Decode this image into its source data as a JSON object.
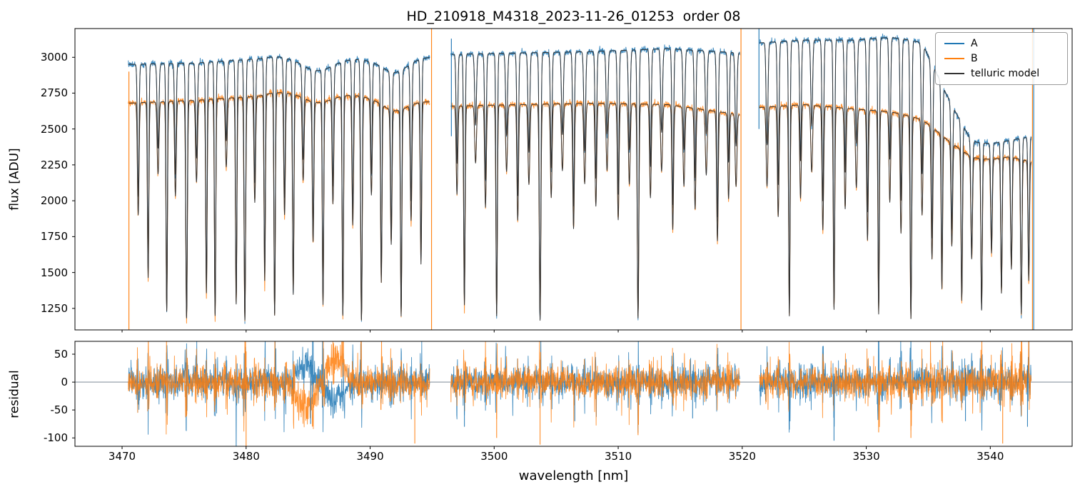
{
  "chart_data": {
    "type": "line",
    "title": "HD_210918_M4318_2023-11-26_01253  order 08",
    "xlabel": "wavelength [nm]",
    "xlim": [
      3466.2,
      3546.6
    ],
    "xticks": [
      3470,
      3480,
      3490,
      3500,
      3510,
      3520,
      3530,
      3540
    ],
    "panels": [
      {
        "name": "flux",
        "ylabel": "flux [ADU]",
        "ylim": [
          1100,
          3200
        ],
        "yticks": [
          1250,
          1500,
          1750,
          2000,
          2250,
          2500,
          2750,
          3000
        ],
        "grid": false
      },
      {
        "name": "residual",
        "ylabel": "residual",
        "ylim": [
          -115,
          73
        ],
        "yticks": [
          -100,
          -50,
          0,
          50
        ],
        "grid": false,
        "zero_line": 0
      }
    ],
    "legend": {
      "position": "upper right",
      "series": [
        {
          "label": "A",
          "color": "#1f77b4"
        },
        {
          "label": "B",
          "color": "#ff7f0e"
        },
        {
          "label": "telluric model",
          "color": "#333333"
        }
      ]
    },
    "segments": [
      [
        3470.5,
        3494.8
      ],
      [
        3496.5,
        3519.8
      ],
      [
        3521.4,
        3543.3
      ]
    ],
    "flux_floor": 1120,
    "continuum_A": [
      [
        3470.5,
        2950
      ],
      [
        3476,
        2960
      ],
      [
        3481,
        2990
      ],
      [
        3484.5,
        3060
      ],
      [
        3487,
        3020
      ],
      [
        3490,
        2980
      ],
      [
        3494.8,
        3000
      ],
      [
        3496.5,
        3020
      ],
      [
        3502,
        3030
      ],
      [
        3508,
        3040
      ],
      [
        3514,
        3060
      ],
      [
        3519.8,
        3030
      ],
      [
        3521.4,
        3100
      ],
      [
        3525,
        3120
      ],
      [
        3529,
        3120
      ],
      [
        3532,
        3140
      ],
      [
        3534.5,
        3120
      ],
      [
        3536.5,
        2800
      ],
      [
        3538.5,
        2520
      ],
      [
        3541.5,
        2500
      ],
      [
        3543.3,
        2480
      ]
    ],
    "continuum_B": [
      [
        3470.5,
        2680
      ],
      [
        3476,
        2700
      ],
      [
        3481,
        2730
      ],
      [
        3484.5,
        2820
      ],
      [
        3487,
        2780
      ],
      [
        3490,
        2720
      ],
      [
        3494.8,
        2690
      ],
      [
        3496.5,
        2660
      ],
      [
        3502,
        2670
      ],
      [
        3508,
        2680
      ],
      [
        3514,
        2670
      ],
      [
        3519.8,
        2600
      ],
      [
        3521.4,
        2650
      ],
      [
        3525,
        2670
      ],
      [
        3529,
        2640
      ],
      [
        3532,
        2620
      ],
      [
        3534.5,
        2580
      ],
      [
        3536.5,
        2480
      ],
      [
        3538.5,
        2400
      ],
      [
        3541.5,
        2380
      ],
      [
        3543.3,
        2300
      ]
    ],
    "telluric_lines": [
      [
        3471.3,
        0.5,
        0.09
      ],
      [
        3472.1,
        0.78,
        0.08
      ],
      [
        3472.9,
        0.32,
        0.1
      ],
      [
        3473.6,
        0.93,
        0.08
      ],
      [
        3474.3,
        0.42,
        0.09
      ],
      [
        3475.2,
        0.96,
        0.09
      ],
      [
        3476.0,
        0.36,
        0.1
      ],
      [
        3476.8,
        0.85,
        0.08
      ],
      [
        3477.5,
        0.95,
        0.08
      ],
      [
        3478.4,
        0.3,
        0.1
      ],
      [
        3479.2,
        0.9,
        0.08
      ],
      [
        3479.9,
        0.97,
        0.09
      ],
      [
        3480.7,
        0.46,
        0.09
      ],
      [
        3481.5,
        0.8,
        0.08
      ],
      [
        3482.3,
        0.95,
        0.08
      ],
      [
        3483.1,
        0.52,
        0.09
      ],
      [
        3483.8,
        0.86,
        0.08
      ],
      [
        3484.6,
        0.36,
        0.1
      ],
      [
        3485.4,
        0.62,
        0.09
      ],
      [
        3486.2,
        0.9,
        0.08
      ],
      [
        3487.0,
        0.46,
        0.09
      ],
      [
        3487.8,
        0.95,
        0.08
      ],
      [
        3488.6,
        0.56,
        0.09
      ],
      [
        3489.3,
        0.97,
        0.09
      ],
      [
        3490.1,
        0.42,
        0.09
      ],
      [
        3490.9,
        0.8,
        0.08
      ],
      [
        3491.7,
        0.62,
        0.09
      ],
      [
        3492.5,
        0.95,
        0.08
      ],
      [
        3493.3,
        0.52,
        0.09
      ],
      [
        3494.1,
        0.72,
        0.08
      ],
      [
        3497.0,
        0.4,
        0.09
      ],
      [
        3497.6,
        0.9,
        0.08
      ],
      [
        3498.5,
        0.26,
        0.1
      ],
      [
        3499.3,
        0.46,
        0.09
      ],
      [
        3500.2,
        0.95,
        0.08
      ],
      [
        3501.0,
        0.3,
        0.1
      ],
      [
        3501.9,
        0.52,
        0.09
      ],
      [
        3502.8,
        0.36,
        0.1
      ],
      [
        3503.7,
        0.97,
        0.09
      ],
      [
        3504.6,
        0.42,
        0.09
      ],
      [
        3505.5,
        0.3,
        0.1
      ],
      [
        3506.4,
        0.56,
        0.09
      ],
      [
        3507.3,
        0.36,
        0.1
      ],
      [
        3508.2,
        0.46,
        0.09
      ],
      [
        3509.1,
        0.3,
        0.1
      ],
      [
        3510.0,
        0.52,
        0.09
      ],
      [
        3510.9,
        0.36,
        0.1
      ],
      [
        3511.6,
        0.96,
        0.09
      ],
      [
        3512.6,
        0.42,
        0.09
      ],
      [
        3513.5,
        0.3,
        0.1
      ],
      [
        3514.4,
        0.56,
        0.09
      ],
      [
        3515.3,
        0.36,
        0.1
      ],
      [
        3516.2,
        0.46,
        0.09
      ],
      [
        3517.1,
        0.3,
        0.1
      ],
      [
        3518.0,
        0.6,
        0.09
      ],
      [
        3518.9,
        0.4,
        0.09
      ],
      [
        3519.5,
        0.34,
        0.1
      ],
      [
        3522.0,
        0.36,
        0.1
      ],
      [
        3522.9,
        0.5,
        0.09
      ],
      [
        3523.8,
        0.95,
        0.08
      ],
      [
        3524.7,
        0.42,
        0.09
      ],
      [
        3525.6,
        0.3,
        0.1
      ],
      [
        3526.5,
        0.56,
        0.09
      ],
      [
        3527.4,
        0.92,
        0.08
      ],
      [
        3528.3,
        0.46,
        0.09
      ],
      [
        3529.2,
        0.36,
        0.1
      ],
      [
        3530.1,
        0.6,
        0.09
      ],
      [
        3531.0,
        0.94,
        0.08
      ],
      [
        3531.9,
        0.42,
        0.09
      ],
      [
        3532.8,
        0.56,
        0.09
      ],
      [
        3533.6,
        0.96,
        0.09
      ],
      [
        3534.5,
        0.46,
        0.09
      ],
      [
        3535.3,
        0.66,
        0.09
      ],
      [
        3536.1,
        0.8,
        0.08
      ],
      [
        3536.9,
        0.56,
        0.09
      ],
      [
        3537.7,
        0.85,
        0.08
      ],
      [
        3538.5,
        0.6,
        0.09
      ],
      [
        3539.3,
        0.9,
        0.08
      ],
      [
        3540.1,
        0.56,
        0.09
      ],
      [
        3540.9,
        0.8,
        0.08
      ],
      [
        3541.7,
        0.66,
        0.09
      ],
      [
        3542.5,
        0.92,
        0.08
      ],
      [
        3543.1,
        0.72,
        0.08
      ]
    ],
    "broad_features": [
      [
        3485.5,
        0.07,
        1.5
      ],
      [
        3492.0,
        0.05,
        1.0
      ],
      [
        3539.5,
        0.08,
        2.5
      ]
    ],
    "edge_lines": {
      "orange": [
        [
          3470.55,
          2900,
          1100
        ],
        [
          3494.95,
          3200,
          1100
        ],
        [
          3519.9,
          3200,
          1100
        ],
        [
          3543.4,
          3200,
          1100
        ]
      ],
      "blue": [
        [
          3496.55,
          3130,
          2450
        ],
        [
          3521.35,
          3200,
          2500
        ],
        [
          3543.5,
          3200,
          1100
        ]
      ]
    },
    "residual_spikes": [
      [
        3480.0,
        "B",
        55,
        -115
      ],
      [
        3485.2,
        "A",
        40,
        -75
      ],
      [
        3493.6,
        "B",
        20,
        -110
      ],
      [
        3497.6,
        "A",
        20,
        -80
      ],
      [
        3500.2,
        "B",
        30,
        -100
      ],
      [
        3503.7,
        "B",
        20,
        -112
      ],
      [
        3506.5,
        "A",
        15,
        -70
      ],
      [
        3511.6,
        "B",
        25,
        -95
      ],
      [
        3516.0,
        "A",
        20,
        -65
      ],
      [
        3523.8,
        "A",
        20,
        -85
      ],
      [
        3527.4,
        "A",
        15,
        -105
      ],
      [
        3531.0,
        "B",
        20,
        -90
      ],
      [
        3533.6,
        "B",
        15,
        -100
      ],
      [
        3538.0,
        "A",
        25,
        -70
      ],
      [
        3541.0,
        "B",
        20,
        -110
      ],
      [
        3543.0,
        "A",
        30,
        -80
      ]
    ],
    "residual_systematic": {
      "x0": 3483.0,
      "x1": 3489.0,
      "A": 38,
      "B": -52
    },
    "noise": {
      "seed": 7,
      "flux_sigma": 10,
      "residual_sigma": 13
    }
  }
}
